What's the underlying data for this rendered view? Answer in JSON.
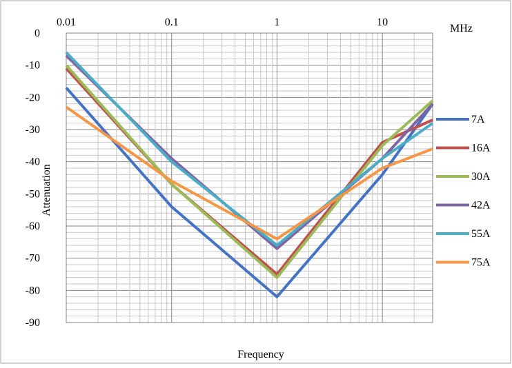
{
  "chart_data": {
    "type": "line",
    "xlabel": "Frequency",
    "ylabel": "Attenuation",
    "x_unit_label": "MHz",
    "x_scale": "log",
    "xlim": [
      0.01,
      30
    ],
    "ylim": [
      -90,
      0
    ],
    "x_tick_labels": [
      "0.01",
      "0.1",
      "1",
      "10"
    ],
    "x_tick_values": [
      0.01,
      0.1,
      1,
      10
    ],
    "y_tick_labels": [
      "0",
      "-10",
      "-20",
      "-30",
      "-40",
      "-50",
      "-60",
      "-70",
      "-80",
      "-90"
    ],
    "y_tick_values": [
      0,
      -10,
      -20,
      -30,
      -40,
      -50,
      -60,
      -70,
      -80,
      -90
    ],
    "x_axis_position": "top",
    "grid": true,
    "legend_position": "right",
    "x": [
      0.01,
      0.1,
      1,
      10,
      30
    ],
    "series": [
      {
        "name": "7A",
        "color": "#4472C4",
        "values": [
          -17,
          -54,
          -82,
          -44,
          -22
        ]
      },
      {
        "name": "16A",
        "color": "#C0504D",
        "values": [
          -11,
          -47,
          -75,
          -34,
          -27
        ]
      },
      {
        "name": "30A",
        "color": "#9BBB59",
        "values": [
          -10,
          -47,
          -76,
          -35,
          -21
        ]
      },
      {
        "name": "42A",
        "color": "#8064A2",
        "values": [
          -7,
          -39,
          -67,
          -39,
          -22
        ]
      },
      {
        "name": "55A",
        "color": "#4BACC6",
        "values": [
          -6,
          -40,
          -66,
          -39,
          -28
        ]
      },
      {
        "name": "75A",
        "color": "#F79646",
        "values": [
          -23,
          -46,
          -64,
          -42,
          -36
        ]
      }
    ]
  }
}
